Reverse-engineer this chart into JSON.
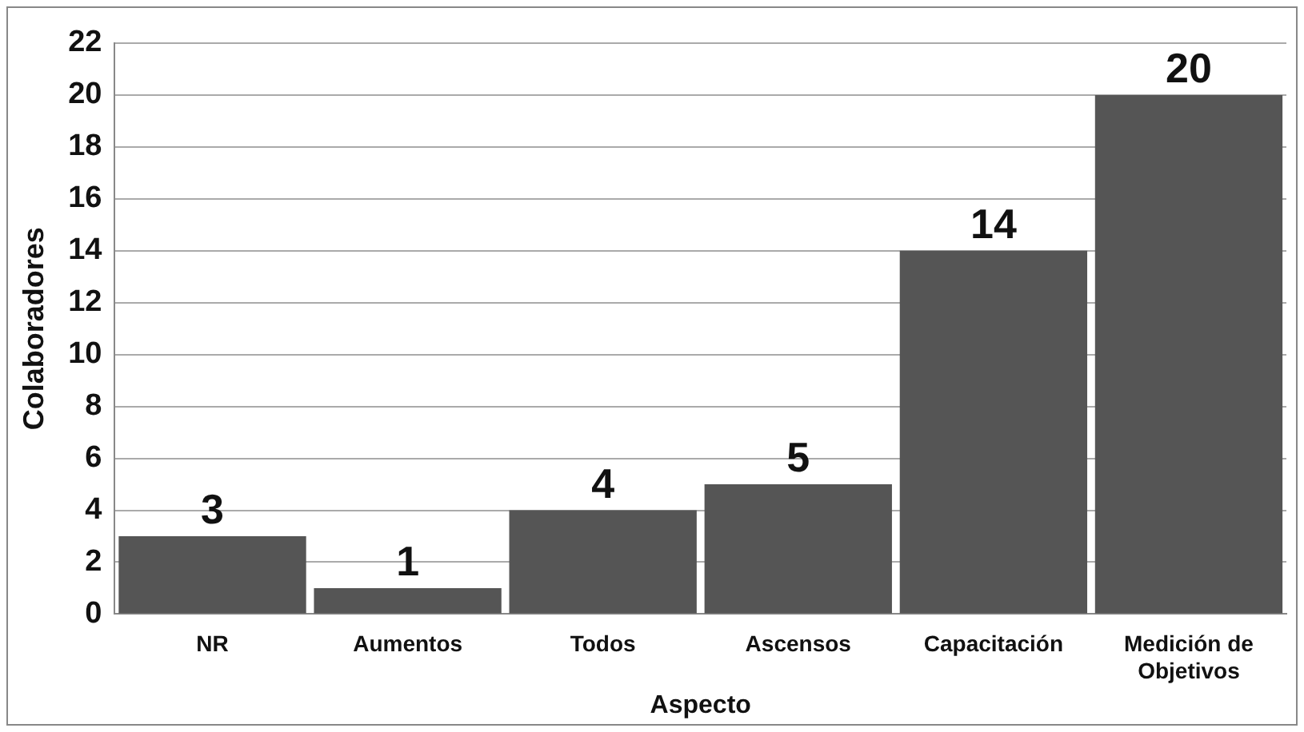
{
  "chart_data": {
    "type": "bar",
    "xlabel": "Aspecto",
    "ylabel": "Colaboradores",
    "categories": [
      "NR",
      "Aumentos",
      "Todos",
      "Ascensos",
      "Capacitación",
      "Medición de Objetivos"
    ],
    "values": [
      3,
      1,
      4,
      5,
      14,
      20
    ],
    "color": "#555555",
    "ylim": [
      0,
      22
    ],
    "yticks": [
      0,
      2,
      4,
      6,
      8,
      10,
      12,
      14,
      16,
      18,
      20,
      22
    ],
    "grid": "y",
    "data_labels": true,
    "legend": false
  }
}
